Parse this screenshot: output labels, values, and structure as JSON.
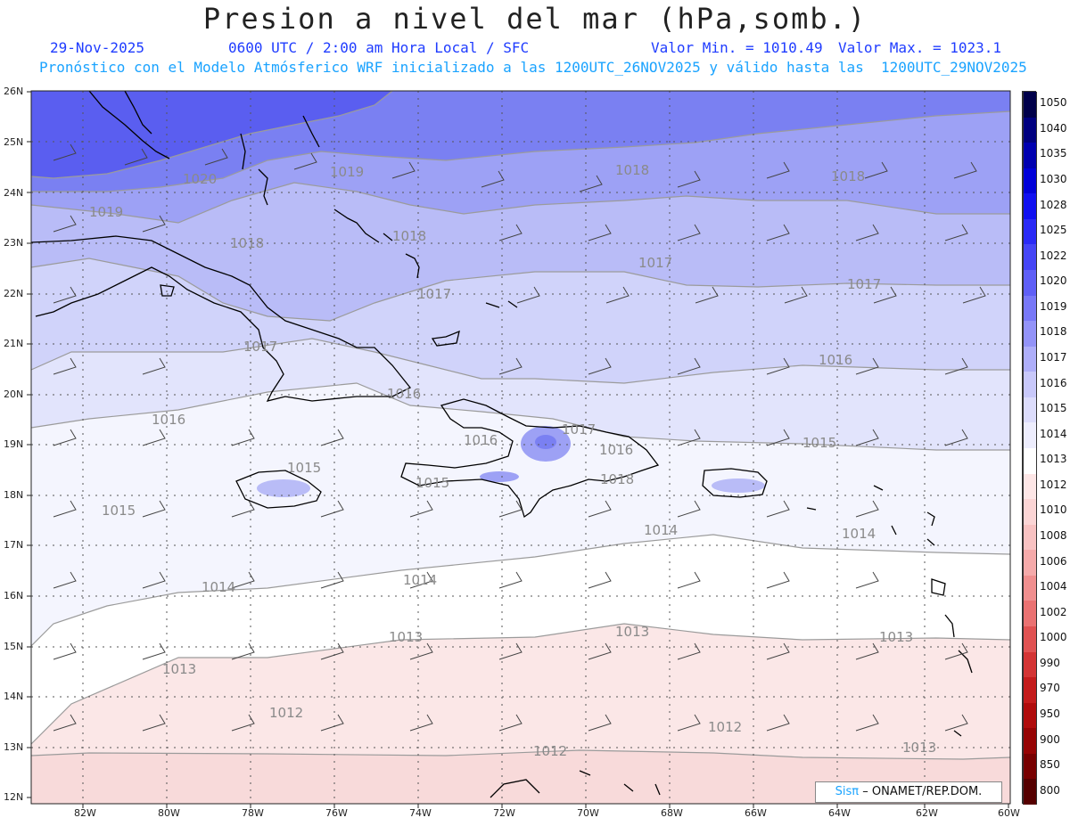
{
  "header": {
    "title": "Presion a nivel del mar (hPa,somb.)",
    "date": "29-Nov-2025",
    "time_info": "0600 UTC / 2:00 am Hora Local / SFC",
    "min_label": "Valor Min. = 1010.49",
    "max_label": "Valor Max. = 1023.1",
    "model_info": "Pronóstico con el Modelo Atmósferico WRF inicializado a las 1200UTC_26NOV2025 y válido hasta las  1200UTC_29NOV2025"
  },
  "map": {
    "lat_labels": [
      "26N",
      "25N",
      "24N",
      "23N",
      "22N",
      "21N",
      "20N",
      "19N",
      "18N",
      "17N",
      "16N",
      "15N",
      "14N",
      "13N",
      "12N"
    ],
    "lon_labels": [
      "82W",
      "80W",
      "78W",
      "76W",
      "74W",
      "72W",
      "70W",
      "68W",
      "66W",
      "64W",
      "62W",
      "60W"
    ],
    "contour_labels": [
      {
        "text": "1020"
      },
      {
        "text": "1019"
      },
      {
        "text": "1019"
      },
      {
        "text": "1018"
      },
      {
        "text": "1018"
      },
      {
        "text": "1018"
      },
      {
        "text": "1018"
      },
      {
        "text": "1017"
      },
      {
        "text": "1017"
      },
      {
        "text": "1017"
      },
      {
        "text": "1017"
      },
      {
        "text": "1016"
      },
      {
        "text": "1016"
      },
      {
        "text": "1016"
      },
      {
        "text": "1016"
      },
      {
        "text": "1017"
      },
      {
        "text": "1016"
      },
      {
        "text": "1015"
      },
      {
        "text": "1015"
      },
      {
        "text": "1015"
      },
      {
        "text": "1015"
      },
      {
        "text": "1014"
      },
      {
        "text": "1014"
      },
      {
        "text": "1014"
      },
      {
        "text": "1014"
      },
      {
        "text": "1013"
      },
      {
        "text": "1013"
      },
      {
        "text": "1013"
      },
      {
        "text": "1013"
      },
      {
        "text": "1012"
      },
      {
        "text": "1012"
      },
      {
        "text": "1012"
      },
      {
        "text": "1013"
      },
      {
        "text": "1018"
      }
    ],
    "colors": {
      "p1020": "#5a5ef0",
      "p1019": "#7a80f2",
      "p1018": "#9da1f5",
      "p1017": "#b9bcf7",
      "p1016": "#d0d3fa",
      "p1015": "#e2e4fc",
      "p1014": "#f4f5fe",
      "p1013": "#ffffff",
      "p1012": "#fbe7e7",
      "p1011": "#f8dada"
    }
  },
  "colorbar": {
    "levels": [
      "1050",
      "1040",
      "1035",
      "1030",
      "1028",
      "1025",
      "1022",
      "1020",
      "1019",
      "1018",
      "1017",
      "1016",
      "1015",
      "1014",
      "1013",
      "1012",
      "1010",
      "1008",
      "1006",
      "1004",
      "1002",
      "1000",
      "990",
      "970",
      "950",
      "900",
      "850",
      "800"
    ],
    "colors": [
      "#00004a",
      "#000080",
      "#0000b0",
      "#0000d8",
      "#1010f0",
      "#2a2af5",
      "#4545f5",
      "#5f5ff6",
      "#7878f7",
      "#9393f8",
      "#aeaef9",
      "#c8c8fa",
      "#dcdcfb",
      "#ededfd",
      "#ffffff",
      "#fde6e6",
      "#fbd5d5",
      "#f8c2c2",
      "#f5aaaa",
      "#f08f8f",
      "#ea7272",
      "#e05252",
      "#d33434",
      "#c41c1c",
      "#b00c0c",
      "#960404",
      "#780000",
      "#560000"
    ]
  },
  "footer": {
    "brand": "Sisπ",
    "org": "– ONAMET/REP.DOM."
  }
}
